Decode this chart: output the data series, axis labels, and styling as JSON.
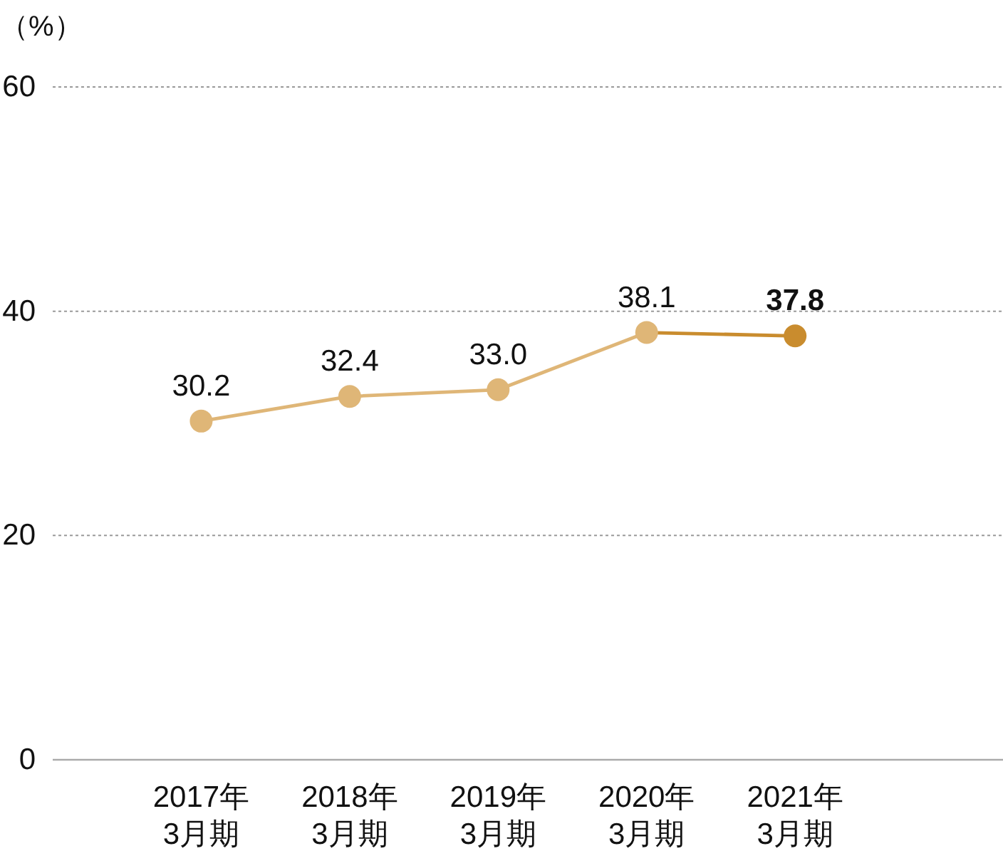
{
  "chart_data": {
    "type": "line",
    "ylabel": "（%）",
    "categories": [
      "2017年\n3月期",
      "2018年\n3月期",
      "2019年\n3月期",
      "2020年\n3月期",
      "2021年\n3月期"
    ],
    "series": [
      {
        "color": "#dfb677",
        "colors": [
          "#dfb677",
          "#dfb677",
          "#dfb677",
          "#dfb677",
          "#c98c2e"
        ],
        "values": [
          30.2,
          32.4,
          33.0,
          38.1,
          37.8
        ],
        "value_labels": [
          "30.2",
          "32.4",
          "33.0",
          "38.1",
          "37.8"
        ]
      }
    ],
    "ylim": [
      0,
      60
    ],
    "yticks": [
      0,
      20,
      40,
      60
    ],
    "grid": "y",
    "marker": "circle"
  }
}
